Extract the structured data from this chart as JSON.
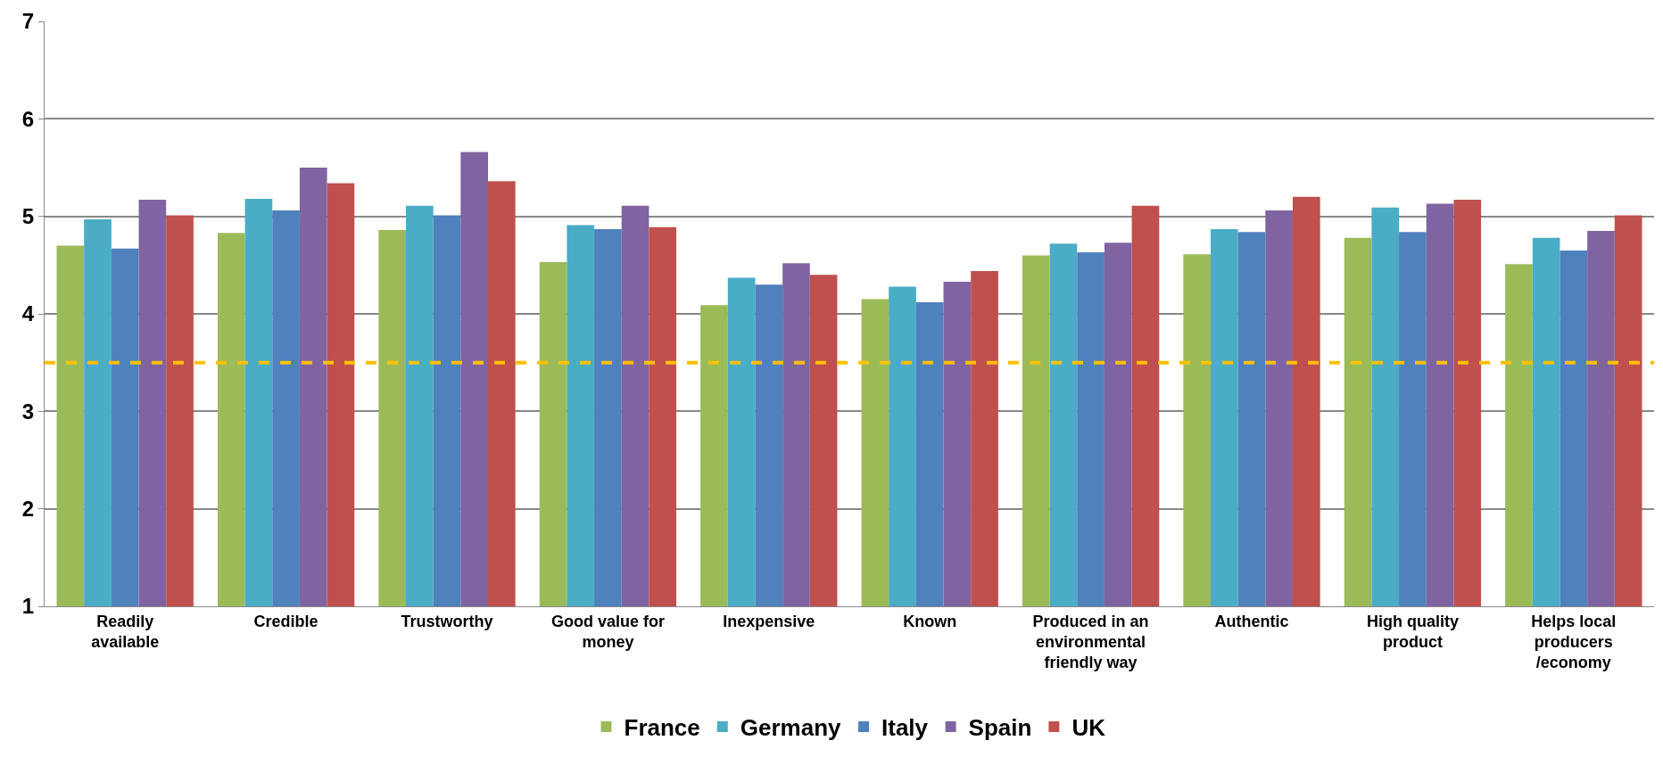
{
  "chart_data": {
    "type": "bar",
    "categories": [
      "Readily available",
      "Credible",
      "Trustworthy",
      "Good value for money",
      "Inexpensive",
      "Known",
      "Produced in an environmental friendly way",
      "Authentic",
      "High quality product",
      "Helps local producers /economy"
    ],
    "series": [
      {
        "name": "France",
        "color": "#9bbb59",
        "values": [
          4.7,
          4.83,
          4.86,
          4.53,
          4.09,
          4.15,
          4.6,
          4.61,
          4.78,
          4.51
        ]
      },
      {
        "name": "Germany",
        "color": "#4bacc6",
        "values": [
          4.97,
          5.18,
          5.11,
          4.91,
          4.37,
          4.28,
          4.72,
          4.87,
          5.09,
          4.78
        ]
      },
      {
        "name": "Italy",
        "color": "#4f81bd",
        "values": [
          4.67,
          5.06,
          5.01,
          4.87,
          4.3,
          4.12,
          4.63,
          4.84,
          4.84,
          4.65
        ]
      },
      {
        "name": "Spain",
        "color": "#8064a2",
        "values": [
          5.17,
          5.5,
          5.66,
          5.11,
          4.52,
          4.33,
          4.73,
          5.06,
          5.13,
          4.85
        ]
      },
      {
        "name": "UK",
        "color": "#c0504d",
        "values": [
          5.01,
          5.34,
          5.36,
          4.89,
          4.4,
          4.44,
          5.11,
          5.2,
          5.17,
          5.01
        ]
      }
    ],
    "ylim": [
      1,
      7
    ],
    "yticks": [
      1,
      2,
      3,
      4,
      5,
      6,
      7
    ],
    "ref_lines": [
      {
        "axis": "y",
        "value": 3.5,
        "color": "#ffc000",
        "line_style": "dashed"
      }
    ],
    "grid": "y",
    "legend": "bottom"
  }
}
